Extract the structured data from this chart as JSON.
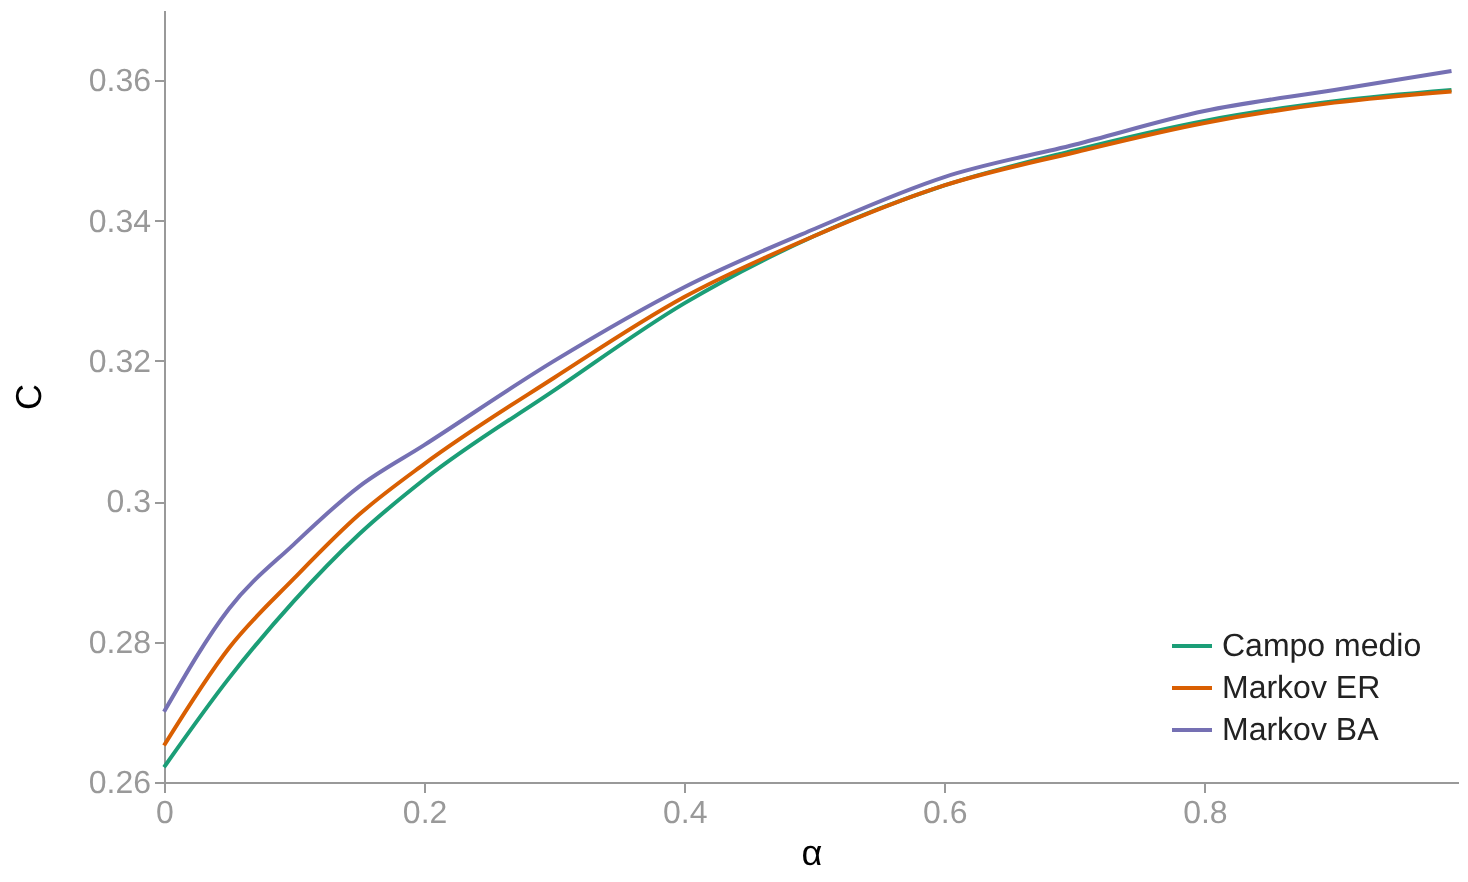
{
  "chart_data": {
    "type": "line",
    "xlabel": "α",
    "ylabel": "C",
    "xlim": [
      0,
      0.995
    ],
    "ylim": [
      0.26,
      0.37
    ],
    "xticks": [
      0,
      0.2,
      0.4,
      0.6,
      0.8
    ],
    "yticks": [
      0.26,
      0.28,
      0.3,
      0.32,
      0.34,
      0.36
    ],
    "grid": false,
    "legend": "bottom right",
    "line_style": "solid",
    "marker": "none",
    "x": [
      0,
      0.05,
      0.1,
      0.15,
      0.2,
      0.3,
      0.4,
      0.5,
      0.6,
      0.7,
      0.8,
      0.9,
      0.99
    ],
    "series": [
      {
        "name": "Campo medio",
        "color": "#1b9e77",
        "values": [
          0.2621,
          0.2748,
          0.2858,
          0.2953,
          0.3031,
          0.3158,
          0.3282,
          0.3378,
          0.345,
          0.35,
          0.3542,
          0.357,
          0.3586
        ]
      },
      {
        "name": "Markov ER",
        "color": "#d95f02",
        "values": [
          0.2652,
          0.2791,
          0.289,
          0.2981,
          0.3053,
          0.3176,
          0.3291,
          0.3378,
          0.345,
          0.3497,
          0.3539,
          0.3568,
          0.3584
        ]
      },
      {
        "name": "Markov BA",
        "color": "#7570b3",
        "values": [
          0.27,
          0.2847,
          0.2939,
          0.3021,
          0.308,
          0.32,
          0.3305,
          0.3388,
          0.3462,
          0.3508,
          0.3556,
          0.3586,
          0.3613
        ]
      }
    ]
  }
}
